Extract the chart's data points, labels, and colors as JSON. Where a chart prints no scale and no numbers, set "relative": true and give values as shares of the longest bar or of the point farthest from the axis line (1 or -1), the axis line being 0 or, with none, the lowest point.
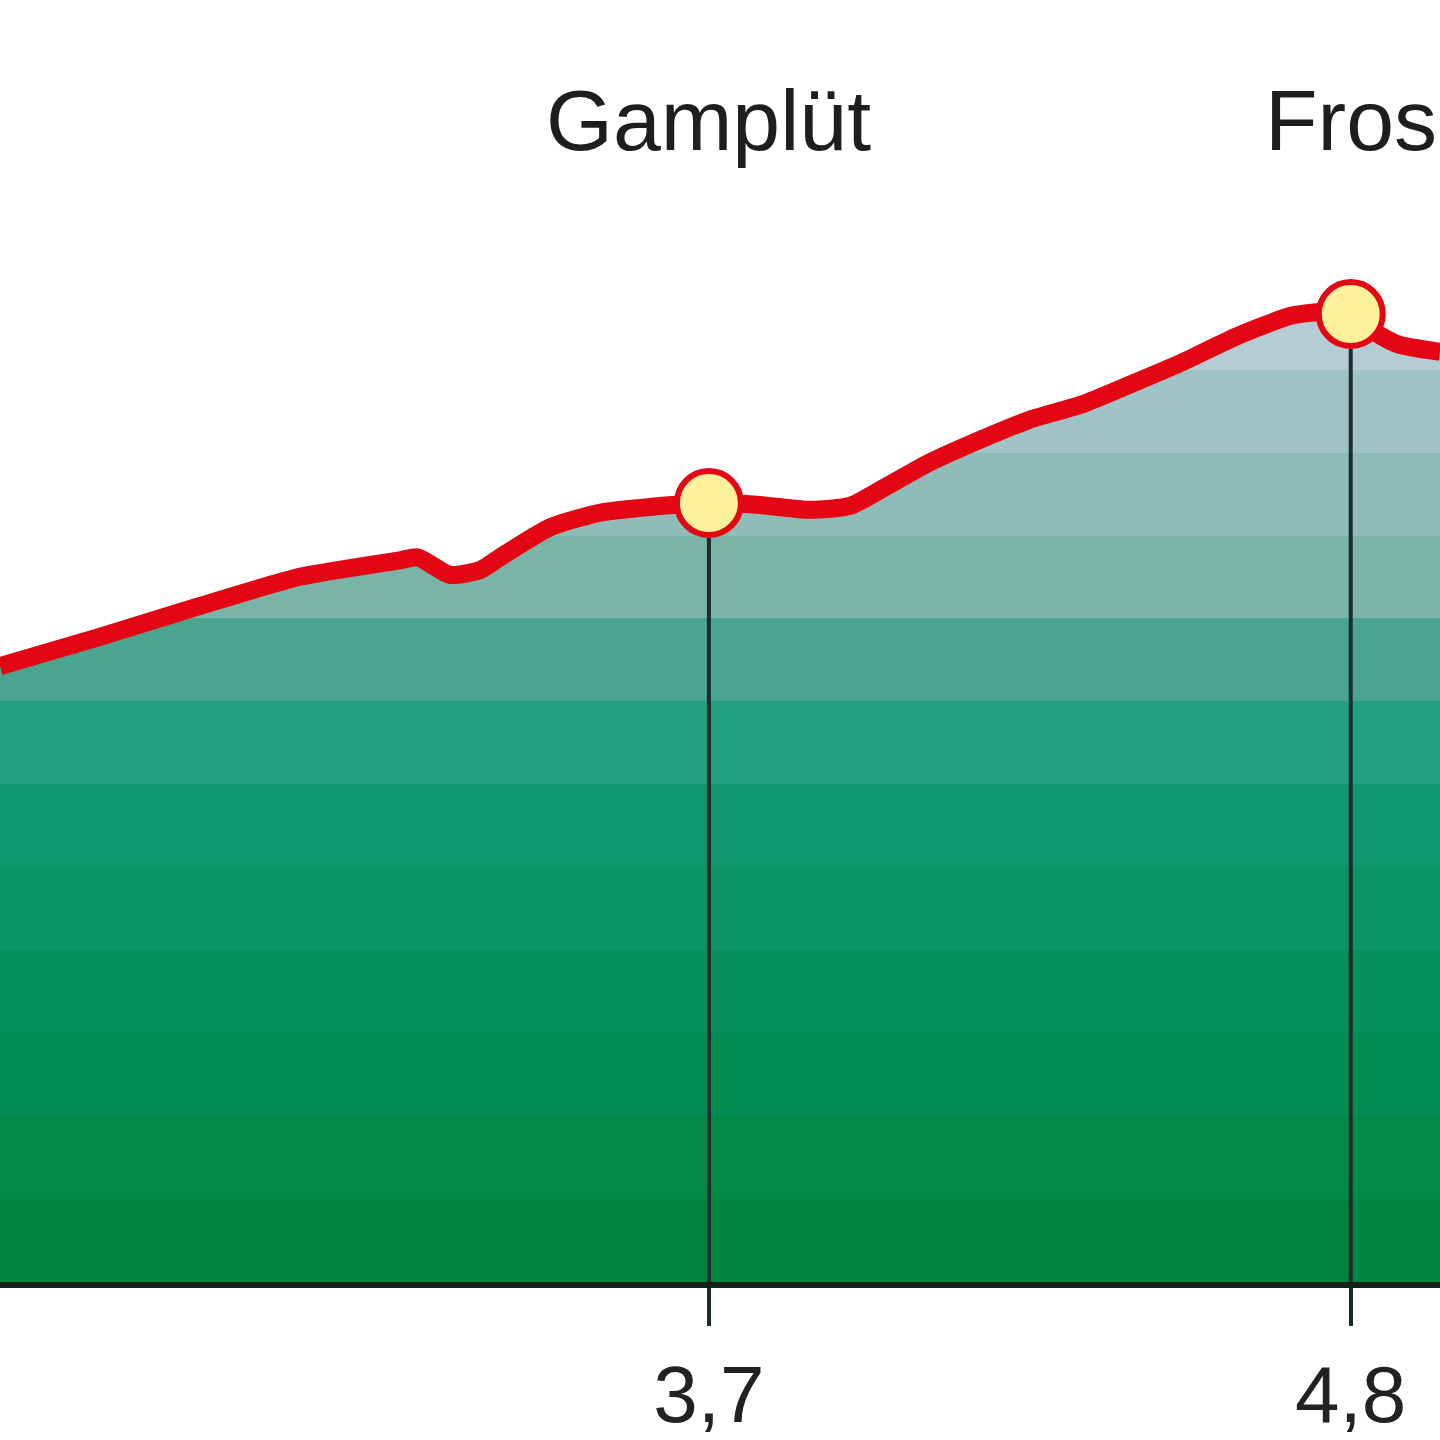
{
  "chart_data": {
    "type": "area",
    "relative": true,
    "x": [
      2.485,
      2.656,
      2.828,
      2.999,
      3.17,
      3.201,
      3.256,
      3.308,
      3.342,
      3.428,
      3.513,
      3.599,
      3.7,
      3.787,
      3.873,
      3.942,
      3.998,
      4.079,
      4.164,
      4.25,
      4.336,
      4.421,
      4.507,
      4.605,
      4.697,
      4.747,
      4.8,
      4.85,
      4.884,
      4.953
    ],
    "xlim": [
      2.485,
      4.953
    ],
    "xticks": [
      {
        "value": 3.7,
        "label": "3,7"
      },
      {
        "value": 4.8,
        "label": "4,8"
      }
    ],
    "series": [
      {
        "color": "#e30613",
        "values": [
          0.635,
          0.665,
          0.697,
          0.727,
          0.744,
          0.747,
          0.729,
          0.734,
          0.747,
          0.778,
          0.793,
          0.799,
          0.803,
          0.801,
          0.796,
          0.8,
          0.818,
          0.845,
          0.868,
          0.889,
          0.904,
          0.925,
          0.947,
          0.975,
          0.996,
          1.0,
          0.998,
          0.976,
          0.966,
          0.959
        ]
      },
      {
        "type": "scatter",
        "x": [
          3.7,
          4.8
        ],
        "values": [
          0.803,
          0.998
        ],
        "color": "#fdf09b",
        "marker": "circle"
      }
    ],
    "ref_lines": [
      {
        "axis": "x",
        "value": 3.7,
        "color": "#1c2b2b"
      },
      {
        "axis": "x",
        "value": 4.8,
        "color": "#1c2b2b"
      }
    ],
    "annotations": [
      "Gamplüt",
      "Fros"
    ]
  }
}
